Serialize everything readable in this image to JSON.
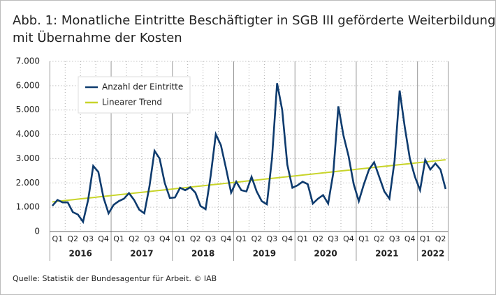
{
  "chart_data": {
    "type": "line",
    "title": [
      "Abb. 1: Monatliche Eintritte Beschäftigter in SGB III geförderte Weiterbildung",
      "mit Übernahme der Kosten"
    ],
    "source": "Quelle: Statistik der Bundesagentur für Arbeit. © IAB",
    "quarters": [
      "Q1",
      "Q2",
      "Q3",
      "Q4",
      "Q1",
      "Q2",
      "Q3",
      "Q4",
      "Q1",
      "Q2",
      "Q3",
      "Q4",
      "Q1",
      "Q2",
      "Q3",
      "Q4",
      "Q1",
      "Q2",
      "Q3",
      "Q4",
      "Q1",
      "Q2",
      "Q3",
      "Q4",
      "Q1",
      "Q2"
    ],
    "years": [
      "2016",
      "2017",
      "2018",
      "2019",
      "2020",
      "2021",
      "2022"
    ],
    "series": [
      {
        "name": "Anzahl der Eintritte",
        "color": "#0e3b6e",
        "values": [
          1060,
          1300,
          1200,
          1200,
          800,
          700,
          400,
          1300,
          2700,
          2450,
          1400,
          750,
          1100,
          1250,
          1350,
          1580,
          1300,
          900,
          750,
          1850,
          3320,
          3000,
          2000,
          1380,
          1400,
          1800,
          1700,
          1820,
          1600,
          1050,
          920,
          2300,
          4000,
          3550,
          2600,
          1600,
          2050,
          1700,
          1650,
          2250,
          1650,
          1250,
          1120,
          3000,
          6100,
          5000,
          2750,
          1800,
          1900,
          2050,
          1950,
          1150,
          1350,
          1500,
          1150,
          2400,
          5150,
          3950,
          3100,
          1950,
          1250,
          1950,
          2550,
          2850,
          2250,
          1650,
          1350,
          2900,
          5800,
          4300,
          3000,
          2250,
          1700,
          2950,
          2550,
          2800,
          2550,
          1750
        ]
      },
      {
        "name": "Linearer Trend",
        "color": "#c8d42a",
        "values": [
          1220,
          1242.5,
          1265,
          1287.5,
          1310,
          1332.5,
          1355,
          1377.5,
          1400,
          1422.5,
          1445,
          1467.5,
          1490,
          1512.5,
          1535,
          1557.5,
          1580,
          1602.5,
          1625,
          1647.5,
          1670,
          1692.5,
          1715,
          1737.5,
          1760,
          1782.5,
          1805,
          1827.5,
          1850,
          1872.5,
          1895,
          1917.5,
          1940,
          1962.5,
          1985,
          2007.5,
          2030,
          2052.5,
          2075,
          2097.5,
          2120,
          2142.5,
          2165,
          2187.5,
          2210,
          2232.5,
          2255,
          2277.5,
          2300,
          2322.5,
          2345,
          2367.5,
          2390,
          2412.5,
          2435,
          2457.5,
          2480,
          2502.5,
          2525,
          2547.5,
          2570,
          2592.5,
          2615,
          2637.5,
          2660,
          2682.5,
          2705,
          2727.5,
          2750,
          2772.5,
          2795,
          2817.5,
          2840,
          2862.5,
          2885,
          2907.5,
          2930,
          2952.5
        ]
      }
    ],
    "ylim": [
      0,
      7000
    ],
    "yticks": [
      0,
      {
        "value": 1000,
        "label": "1.000"
      },
      {
        "value": 2000,
        "label": "2.000"
      },
      {
        "value": 3000,
        "label": "3.000"
      },
      {
        "value": 4000,
        "label": "4.000"
      },
      {
        "value": 5000,
        "label": "5.000"
      },
      {
        "value": 6000,
        "label": "6.000"
      },
      {
        "value": 7000,
        "label": "7.000"
      }
    ],
    "grid": true,
    "legend": "upper-left"
  }
}
